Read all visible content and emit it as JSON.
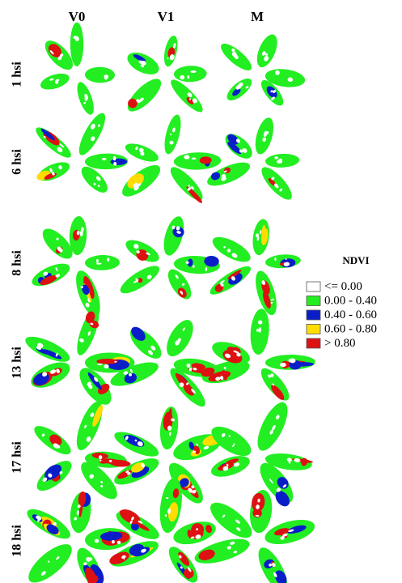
{
  "columns": [
    "V0",
    "V1",
    "M"
  ],
  "rows": [
    "1 hsi",
    "6 hsi",
    "8 hsi",
    "13 hsi",
    "17 hsi",
    "18 hsi"
  ],
  "legend": {
    "title": "NDVI",
    "items": [
      {
        "label": "<= 0.00",
        "color": "#ffffff"
      },
      {
        "label": "0.00 - 0.40",
        "color": "#22ee22"
      },
      {
        "label": "0.40 - 0.60",
        "color": "#0a1ec8"
      },
      {
        "label": "0.60 - 0.80",
        "color": "#ffdd00"
      },
      {
        "label": "> 0.80",
        "color": "#dd1111"
      }
    ]
  }
}
